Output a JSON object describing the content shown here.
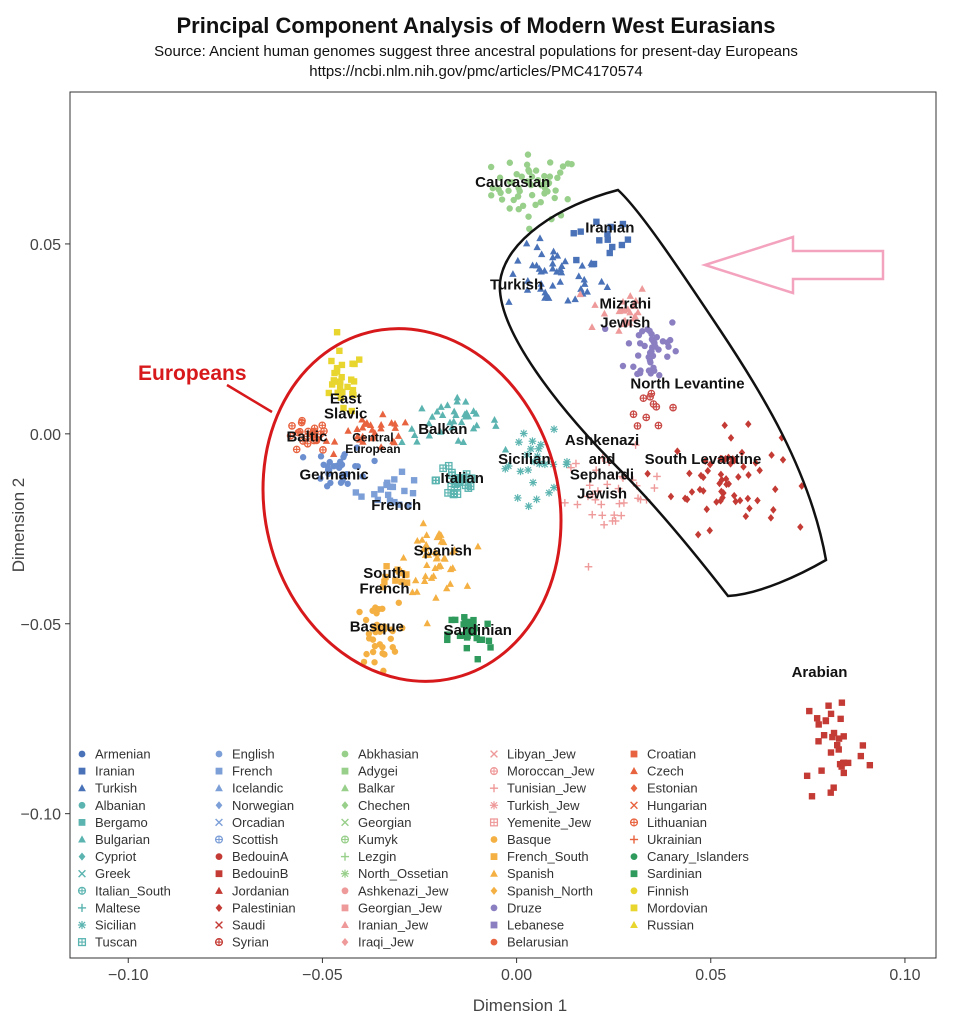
{
  "chart_data": {
    "type": "scatter",
    "title": "Principal Component Analysis of Modern West Eurasians",
    "subtitle": "Source: Ancient human genomes suggest three ancestral populations for present-day Europeans",
    "source_url": "https://ncbi.nlm.nih.gov/pmc/articles/PMC4170574",
    "xlabel": "Dimension 1",
    "ylabel": "Dimension 2",
    "xlim": [
      -0.115,
      0.108
    ],
    "ylim": [
      -0.138,
      0.09
    ],
    "xticks": [
      -0.1,
      -0.05,
      0.0,
      0.05,
      0.1
    ],
    "xtick_labels": [
      "−0.10",
      "−0.05",
      "0.00",
      "0.05",
      "0.10"
    ],
    "yticks": [
      0.05,
      0.0,
      -0.05,
      -0.1
    ],
    "ytick_labels": [
      "0.05",
      "0.00",
      "−0.05",
      "−0.10"
    ],
    "grid": false,
    "legend_placement": "bottom-inside",
    "clusters": [
      {
        "name": "Caucasian",
        "cx": 0.005,
        "cy": 0.065,
        "sx": 0.008,
        "sy": 0.006,
        "color": "#98cf8a",
        "marker": "circle",
        "n": 55
      },
      {
        "name": "Iranian",
        "cx": 0.02,
        "cy": 0.05,
        "sx": 0.007,
        "sy": 0.005,
        "color": "#4a72b8",
        "marker": "square",
        "n": 14
      },
      {
        "name": "Turkish",
        "cx": 0.01,
        "cy": 0.041,
        "sx": 0.009,
        "sy": 0.006,
        "color": "#4a72b8",
        "marker": "triangle",
        "n": 45
      },
      {
        "name": "Mizrahi Jewish",
        "cx": 0.026,
        "cy": 0.033,
        "sx": 0.006,
        "sy": 0.005,
        "color": "#ef9a9a",
        "marker": "triangle",
        "n": 22
      },
      {
        "name": "Druze/Lebanese",
        "cx": 0.035,
        "cy": 0.022,
        "sx": 0.005,
        "sy": 0.007,
        "color": "#8b7fc2",
        "marker": "circle",
        "n": 40
      },
      {
        "name": "North Levantine",
        "cx": 0.034,
        "cy": 0.008,
        "sx": 0.004,
        "sy": 0.004,
        "color": "#c94a46",
        "marker": "circle-plus",
        "n": 10
      },
      {
        "name": "South Levantine",
        "cx": 0.054,
        "cy": -0.012,
        "sx": 0.01,
        "sy": 0.009,
        "color": "#c43a34",
        "marker": "diamond",
        "n": 60
      },
      {
        "name": "Ashkenazi and Sephardi Jewish",
        "cx": 0.025,
        "cy": -0.016,
        "sx": 0.009,
        "sy": 0.008,
        "color": "#ef9a9a",
        "marker": "cross",
        "n": 35
      },
      {
        "name": "Sicilian",
        "cx": 0.005,
        "cy": -0.008,
        "sx": 0.007,
        "sy": 0.006,
        "color": "#5bb4b0",
        "marker": "asterisk",
        "n": 25
      },
      {
        "name": "Balkan",
        "cx": -0.017,
        "cy": 0.003,
        "sx": 0.009,
        "sy": 0.004,
        "color": "#5bb4b0",
        "marker": "triangle",
        "n": 35
      },
      {
        "name": "Italian",
        "cx": -0.015,
        "cy": -0.012,
        "sx": 0.004,
        "sy": 0.005,
        "color": "#5bb4b0",
        "marker": "square-plus",
        "n": 25
      },
      {
        "name": "East Slavic",
        "cx": -0.045,
        "cy": 0.013,
        "sx": 0.004,
        "sy": 0.006,
        "color": "#e8d52e",
        "marker": "square",
        "n": 28
      },
      {
        "name": "Baltic",
        "cx": -0.054,
        "cy": -0.001,
        "sx": 0.004,
        "sy": 0.003,
        "color": "#e8633f",
        "marker": "circle-plus",
        "n": 22
      },
      {
        "name": "Central European",
        "cx": -0.036,
        "cy": 0.0,
        "sx": 0.007,
        "sy": 0.003,
        "color": "#e8633f",
        "marker": "triangle",
        "n": 30
      },
      {
        "name": "Germanic",
        "cx": -0.045,
        "cy": -0.009,
        "sx": 0.005,
        "sy": 0.004,
        "color": "#6c8fd0",
        "marker": "circle",
        "n": 30
      },
      {
        "name": "French",
        "cx": -0.032,
        "cy": -0.015,
        "sx": 0.006,
        "sy": 0.003,
        "color": "#7d9fd8",
        "marker": "square",
        "n": 20
      },
      {
        "name": "Spanish",
        "cx": -0.021,
        "cy": -0.033,
        "sx": 0.005,
        "sy": 0.006,
        "color": "#f4b043",
        "marker": "triangle",
        "n": 45
      },
      {
        "name": "South French",
        "cx": -0.032,
        "cy": -0.038,
        "sx": 0.004,
        "sy": 0.003,
        "color": "#f4b043",
        "marker": "square",
        "n": 12
      },
      {
        "name": "Basque",
        "cx": -0.036,
        "cy": -0.053,
        "sx": 0.004,
        "sy": 0.006,
        "color": "#f4b043",
        "marker": "circle",
        "n": 35
      },
      {
        "name": "Sardinian",
        "cx": -0.012,
        "cy": -0.053,
        "sx": 0.004,
        "sy": 0.005,
        "color": "#2e9a5c",
        "marker": "square",
        "n": 30
      },
      {
        "name": "Arabian",
        "cx": 0.082,
        "cy": -0.082,
        "sx": 0.006,
        "sy": 0.012,
        "color": "#c43a34",
        "marker": "square",
        "n": 32
      }
    ],
    "cluster_labels": [
      {
        "text": "Caucasian",
        "x": -0.001,
        "y": 0.065
      },
      {
        "text": "Iranian",
        "x": 0.024,
        "y": 0.053
      },
      {
        "text": "Turkish",
        "x": 0.0,
        "y": 0.038
      },
      {
        "text": "Mizrahi",
        "x": 0.028,
        "y": 0.033
      },
      {
        "text": "Jewish",
        "x": 0.028,
        "y": 0.028
      },
      {
        "text": "North Levantine",
        "x": 0.044,
        "y": 0.012
      },
      {
        "text": "South Levantine",
        "x": 0.048,
        "y": -0.008
      },
      {
        "text": "Ashkenazi",
        "x": 0.022,
        "y": -0.003
      },
      {
        "text": "and",
        "x": 0.022,
        "y": -0.008
      },
      {
        "text": "Sephardi",
        "x": 0.022,
        "y": -0.012
      },
      {
        "text": "Jewish",
        "x": 0.022,
        "y": -0.017
      },
      {
        "text": "Sicilian",
        "x": 0.002,
        "y": -0.008
      },
      {
        "text": "Balkan",
        "x": -0.019,
        "y": 0.0
      },
      {
        "text": "Italian",
        "x": -0.014,
        "y": -0.013
      },
      {
        "text": "East",
        "x": -0.044,
        "y": 0.008
      },
      {
        "text": "Slavic",
        "x": -0.044,
        "y": 0.004
      },
      {
        "text": "Baltic",
        "x": -0.054,
        "y": -0.002
      },
      {
        "text": "Central",
        "x": -0.037,
        "y": -0.002
      },
      {
        "text": "European",
        "x": -0.037,
        "y": -0.005
      },
      {
        "text": "Germanic",
        "x": -0.047,
        "y": -0.012
      },
      {
        "text": "French",
        "x": -0.031,
        "y": -0.02
      },
      {
        "text": "Spanish",
        "x": -0.019,
        "y": -0.032
      },
      {
        "text": "South",
        "x": -0.034,
        "y": -0.038
      },
      {
        "text": "French",
        "x": -0.034,
        "y": -0.042
      },
      {
        "text": "Basque",
        "x": -0.036,
        "y": -0.052
      },
      {
        "text": "Sardinian",
        "x": -0.01,
        "y": -0.053
      },
      {
        "text": "Arabian",
        "x": 0.078,
        "y": -0.064
      }
    ],
    "annotation_europeans": "Europeans",
    "legend_columns": [
      [
        {
          "label": "Armenian",
          "color": "#4a72b8",
          "marker": "circle"
        },
        {
          "label": "Iranian",
          "color": "#4a72b8",
          "marker": "square"
        },
        {
          "label": "Turkish",
          "color": "#4a72b8",
          "marker": "triangle"
        },
        {
          "label": "Albanian",
          "color": "#5bb4b0",
          "marker": "circle"
        },
        {
          "label": "Bergamo",
          "color": "#5bb4b0",
          "marker": "square"
        },
        {
          "label": "Bulgarian",
          "color": "#5bb4b0",
          "marker": "triangle"
        },
        {
          "label": "Cypriot",
          "color": "#5bb4b0",
          "marker": "diamond"
        },
        {
          "label": "Greek",
          "color": "#5bb4b0",
          "marker": "x"
        },
        {
          "label": "Italian_South",
          "color": "#5bb4b0",
          "marker": "circle-plus"
        },
        {
          "label": "Maltese",
          "color": "#5bb4b0",
          "marker": "cross"
        },
        {
          "label": "Sicilian",
          "color": "#5bb4b0",
          "marker": "asterisk"
        },
        {
          "label": "Tuscan",
          "color": "#5bb4b0",
          "marker": "square-plus"
        }
      ],
      [
        {
          "label": "English",
          "color": "#7d9fd8",
          "marker": "circle"
        },
        {
          "label": "French",
          "color": "#7d9fd8",
          "marker": "square"
        },
        {
          "label": "Icelandic",
          "color": "#7d9fd8",
          "marker": "triangle"
        },
        {
          "label": "Norwegian",
          "color": "#7d9fd8",
          "marker": "diamond"
        },
        {
          "label": "Orcadian",
          "color": "#7d9fd8",
          "marker": "x"
        },
        {
          "label": "Scottish",
          "color": "#7d9fd8",
          "marker": "circle-plus"
        },
        {
          "label": "BedouinA",
          "color": "#c43a34",
          "marker": "circle"
        },
        {
          "label": "BedouinB",
          "color": "#c43a34",
          "marker": "square"
        },
        {
          "label": "Jordanian",
          "color": "#c43a34",
          "marker": "triangle"
        },
        {
          "label": "Palestinian",
          "color": "#c43a34",
          "marker": "diamond"
        },
        {
          "label": "Saudi",
          "color": "#c43a34",
          "marker": "x"
        },
        {
          "label": "Syrian",
          "color": "#c43a34",
          "marker": "circle-plus"
        }
      ],
      [
        {
          "label": "Abkhasian",
          "color": "#98cf8a",
          "marker": "circle"
        },
        {
          "label": "Adygei",
          "color": "#98cf8a",
          "marker": "square"
        },
        {
          "label": "Balkar",
          "color": "#98cf8a",
          "marker": "triangle"
        },
        {
          "label": "Chechen",
          "color": "#98cf8a",
          "marker": "diamond"
        },
        {
          "label": "Georgian",
          "color": "#98cf8a",
          "marker": "x"
        },
        {
          "label": "Kumyk",
          "color": "#98cf8a",
          "marker": "circle-plus"
        },
        {
          "label": "Lezgin",
          "color": "#98cf8a",
          "marker": "cross"
        },
        {
          "label": "North_Ossetian",
          "color": "#98cf8a",
          "marker": "asterisk"
        },
        {
          "label": "Ashkenazi_Jew",
          "color": "#ef9a9a",
          "marker": "circle"
        },
        {
          "label": "Georgian_Jew",
          "color": "#ef9a9a",
          "marker": "square"
        },
        {
          "label": "Iranian_Jew",
          "color": "#ef9a9a",
          "marker": "triangle"
        },
        {
          "label": "Iraqi_Jew",
          "color": "#ef9a9a",
          "marker": "diamond"
        }
      ],
      [
        {
          "label": "Libyan_Jew",
          "color": "#ef9a9a",
          "marker": "x"
        },
        {
          "label": "Moroccan_Jew",
          "color": "#ef9a9a",
          "marker": "circle-plus"
        },
        {
          "label": "Tunisian_Jew",
          "color": "#ef9a9a",
          "marker": "cross"
        },
        {
          "label": "Turkish_Jew",
          "color": "#ef9a9a",
          "marker": "asterisk"
        },
        {
          "label": "Yemenite_Jew",
          "color": "#ef9a9a",
          "marker": "square-plus"
        },
        {
          "label": "Basque",
          "color": "#f4b043",
          "marker": "circle"
        },
        {
          "label": "French_South",
          "color": "#f4b043",
          "marker": "square"
        },
        {
          "label": "Spanish",
          "color": "#f4b043",
          "marker": "triangle"
        },
        {
          "label": "Spanish_North",
          "color": "#f4b043",
          "marker": "diamond"
        },
        {
          "label": "Druze",
          "color": "#8b7fc2",
          "marker": "circle"
        },
        {
          "label": "Lebanese",
          "color": "#8b7fc2",
          "marker": "square"
        },
        {
          "label": "Belarusian",
          "color": "#e8633f",
          "marker": "circle"
        }
      ],
      [
        {
          "label": "Croatian",
          "color": "#e8633f",
          "marker": "square"
        },
        {
          "label": "Czech",
          "color": "#e8633f",
          "marker": "triangle"
        },
        {
          "label": "Estonian",
          "color": "#e8633f",
          "marker": "diamond"
        },
        {
          "label": "Hungarian",
          "color": "#e8633f",
          "marker": "x"
        },
        {
          "label": "Lithuanian",
          "color": "#e8633f",
          "marker": "circle-plus"
        },
        {
          "label": "Ukrainian",
          "color": "#e8633f",
          "marker": "cross"
        },
        {
          "label": "Canary_Islanders",
          "color": "#2e9a5c",
          "marker": "circle"
        },
        {
          "label": "Sardinian",
          "color": "#2e9a5c",
          "marker": "square"
        },
        {
          "label": "Finnish",
          "color": "#e8d52e",
          "marker": "circle"
        },
        {
          "label": "Mordovian",
          "color": "#e8d52e",
          "marker": "square"
        },
        {
          "label": "Russian",
          "color": "#e8d52e",
          "marker": "triangle"
        }
      ]
    ]
  }
}
